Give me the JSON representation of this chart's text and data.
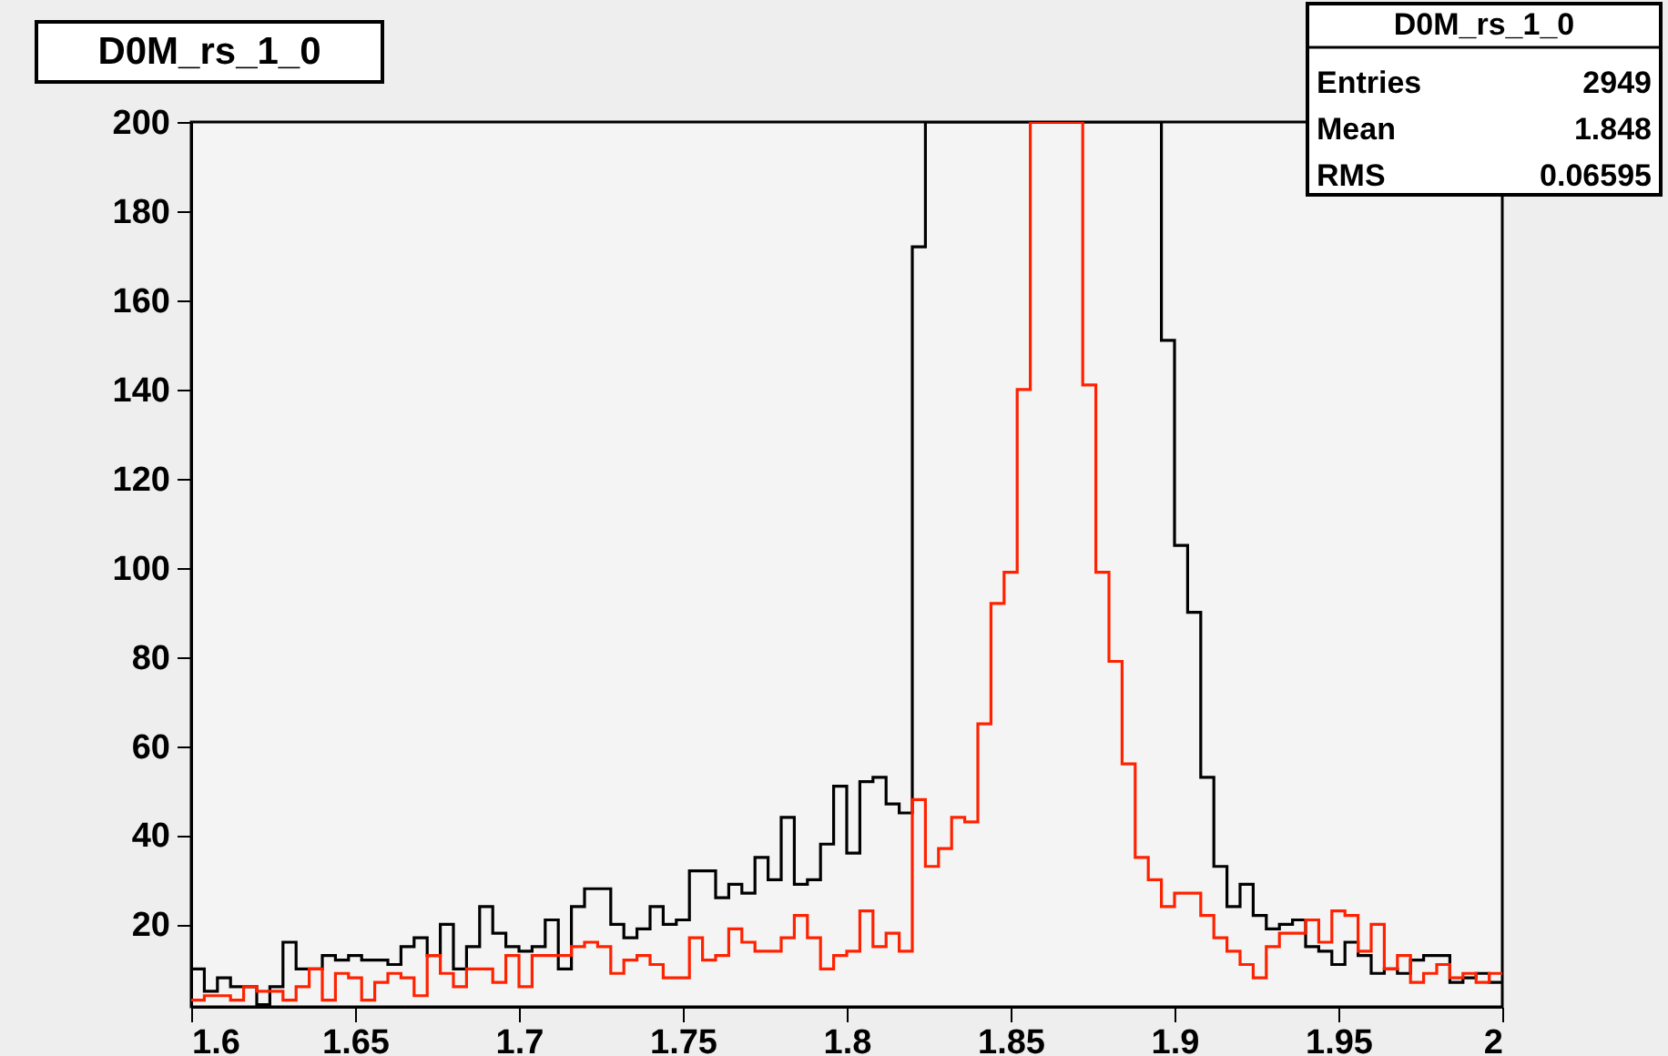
{
  "chart_data": {
    "type": "histogram",
    "title": "D0M_rs_1_0",
    "annotations": [
      "D0M_rs_1_0",
      "Entries",
      "2949",
      "Mean",
      "1.848",
      "RMS",
      "0.06595"
    ],
    "bins": [
      1.6,
      1.604,
      1.608,
      1.612,
      1.616,
      1.62,
      1.624,
      1.628,
      1.632,
      1.636,
      1.64,
      1.644,
      1.648,
      1.652,
      1.656,
      1.66,
      1.664,
      1.668,
      1.672,
      1.676,
      1.68,
      1.684,
      1.688,
      1.692,
      1.696,
      1.7,
      1.704,
      1.708,
      1.712,
      1.716,
      1.72,
      1.724,
      1.728,
      1.732,
      1.736,
      1.74,
      1.744,
      1.748,
      1.752,
      1.756,
      1.76,
      1.764,
      1.768,
      1.772,
      1.776,
      1.78,
      1.784,
      1.788,
      1.792,
      1.796,
      1.8,
      1.804,
      1.808,
      1.812,
      1.816,
      1.82,
      1.824,
      1.828,
      1.832,
      1.836,
      1.84,
      1.844,
      1.848,
      1.852,
      1.856,
      1.86,
      1.864,
      1.868,
      1.872,
      1.876,
      1.88,
      1.884,
      1.888,
      1.892,
      1.896,
      1.9,
      1.904,
      1.908,
      1.912,
      1.916,
      1.92,
      1.924,
      1.928,
      1.932,
      1.936,
      1.94,
      1.944,
      1.948,
      1.952,
      1.956,
      1.96,
      1.964,
      1.968,
      1.972,
      1.976,
      1.98,
      1.984,
      1.988,
      1.992,
      1.996,
      2.0
    ],
    "series": [
      {
        "color": "#000000",
        "values": [
          10,
          5,
          8,
          6,
          6,
          2,
          6,
          16,
          10,
          10,
          13,
          12,
          13,
          12,
          12,
          11,
          15,
          17,
          13,
          20,
          10,
          15,
          24,
          18,
          15,
          14,
          15,
          21,
          10,
          24,
          28,
          28,
          20,
          17,
          19,
          24,
          20,
          21,
          32,
          32,
          26,
          29,
          27,
          35,
          30,
          44,
          29,
          30,
          38,
          51,
          36,
          52,
          53,
          47,
          45,
          172,
          200,
          200,
          200,
          200,
          200,
          200,
          200,
          200,
          200,
          200,
          200,
          200,
          200,
          200,
          200,
          200,
          200,
          200,
          151,
          105,
          90,
          53,
          33,
          24,
          29,
          22,
          19,
          20,
          21,
          15,
          14,
          11,
          16,
          13,
          9,
          10,
          9,
          12,
          13,
          13,
          7,
          8,
          9,
          7
        ]
      },
      {
        "color": "#ff2200",
        "values": [
          3,
          4,
          4,
          3,
          6,
          5,
          5,
          3,
          6,
          10,
          3,
          9,
          8,
          3,
          7,
          9,
          8,
          4,
          13,
          9,
          6,
          10,
          10,
          7,
          13,
          6,
          13,
          13,
          13,
          15,
          16,
          15,
          9,
          12,
          13,
          11,
          8,
          8,
          17,
          12,
          13,
          19,
          16,
          14,
          14,
          17,
          22,
          17,
          10,
          13,
          14,
          23,
          15,
          18,
          14,
          48,
          33,
          37,
          44,
          43,
          65,
          92,
          99,
          140,
          200,
          200,
          200,
          200,
          141,
          99,
          79,
          56,
          35,
          30,
          24,
          27,
          27,
          22,
          17,
          14,
          11,
          8,
          15,
          18,
          18,
          21,
          16,
          23,
          22,
          14,
          20,
          10,
          13,
          7,
          9,
          11,
          8,
          9,
          7,
          9
        ]
      }
    ],
    "xlim": [
      1.6,
      2.0
    ],
    "xticks": [
      1.6,
      1.65,
      1.7,
      1.75,
      1.8,
      1.85,
      1.9,
      1.95,
      2
    ],
    "ylim": [
      1.5,
      200
    ],
    "yticks": [
      20,
      40,
      60,
      80,
      100,
      120,
      140,
      160,
      180,
      200
    ],
    "grid": false,
    "legend": false
  }
}
